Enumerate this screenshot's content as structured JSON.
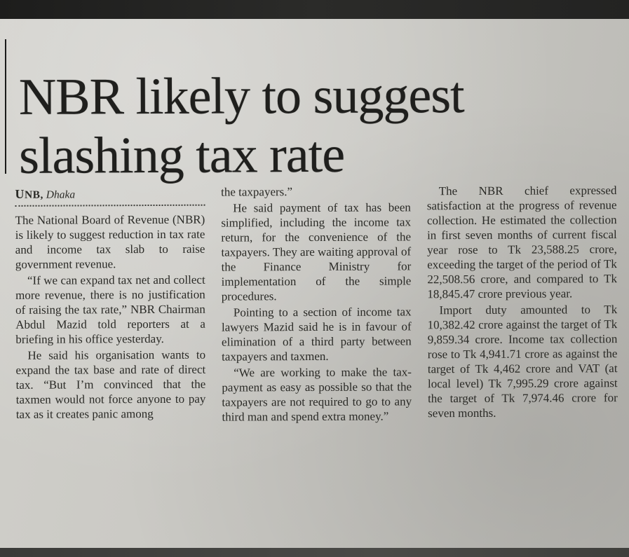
{
  "article": {
    "headline_lines": [
      "NBR likely to suggest",
      "slashing tax rate"
    ],
    "byline": {
      "agency": "UNB,",
      "city": "Dhaka"
    },
    "columns": [
      {
        "paragraphs": [
          "The National Board of Revenue (NBR) is likely to suggest reduction in tax rate and income tax slab to raise government revenue.",
          "“If we can expand tax net and collect more revenue, there is no justification of raising the tax rate,” NBR Chairman Abdul Mazid told reporters at a briefing in his office yesterday.",
          "He said his organisation wants to expand the tax base and rate of direct tax. “But I’m convinced that the taxmen would not force anyone to pay tax as it creates panic among"
        ]
      },
      {
        "paragraphs": [
          "the taxpayers.”",
          "He said payment of tax has been simplified, including the income tax return, for the convenience of the taxpayers. They are waiting approval of the Finance Ministry for implementation of the simple procedures.",
          "Pointing to a section of income tax lawyers Mazid said he is in favour of elimination of a third party between taxpayers and taxmen.",
          "“We are working to make the tax-payment as easy as possible so that the taxpayers are not required to go to any third man and spend extra money.”"
        ]
      },
      {
        "paragraphs": [
          "The NBR chief expressed satisfaction at the progress of revenue collection. He estimated the collection in first seven months of current fiscal year rose to Tk 23,588.25 crore, exceeding the target of the period of Tk 22,508.56 crore, and compared to Tk 18,845.47 crore previous year.",
          "Import duty amounted to Tk 10,382.42 crore against the target of Tk 9,859.34 crore. Income tax collection rose to Tk 4,941.71 crore as against the target of Tk 4,462 crore and VAT (at local level) Tk 7,995.29 crore against the target of Tk 7,974.46 crore for seven months."
        ]
      }
    ]
  }
}
